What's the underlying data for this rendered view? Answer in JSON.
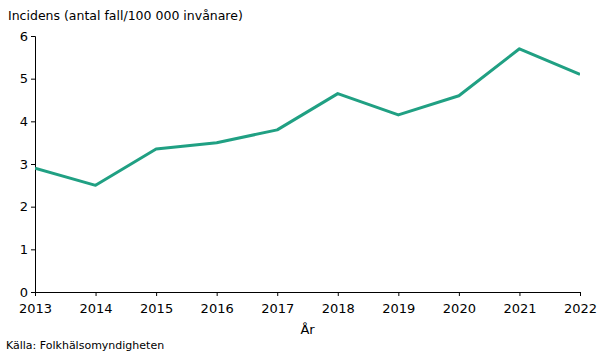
{
  "chart_data": {
    "type": "line",
    "y_label": "Incidens (antal fall/100 000 invånare)",
    "x_label": "År",
    "source": "Källa: Folkhälsomyndigheten",
    "x": [
      2013,
      2014,
      2015,
      2016,
      2017,
      2018,
      2019,
      2020,
      2021,
      2022
    ],
    "values": [
      2.9,
      2.5,
      3.35,
      3.5,
      3.8,
      4.65,
      4.15,
      4.6,
      5.7,
      5.1
    ],
    "color": "#20a083",
    "xlim": [
      2013,
      2022
    ],
    "xticks": [
      2013,
      2014,
      2015,
      2016,
      2017,
      2018,
      2019,
      2020,
      2021,
      2022
    ],
    "ylim": [
      0,
      6
    ],
    "yticks": [
      0,
      1,
      2,
      3,
      4,
      5,
      6
    ],
    "grid": false
  }
}
